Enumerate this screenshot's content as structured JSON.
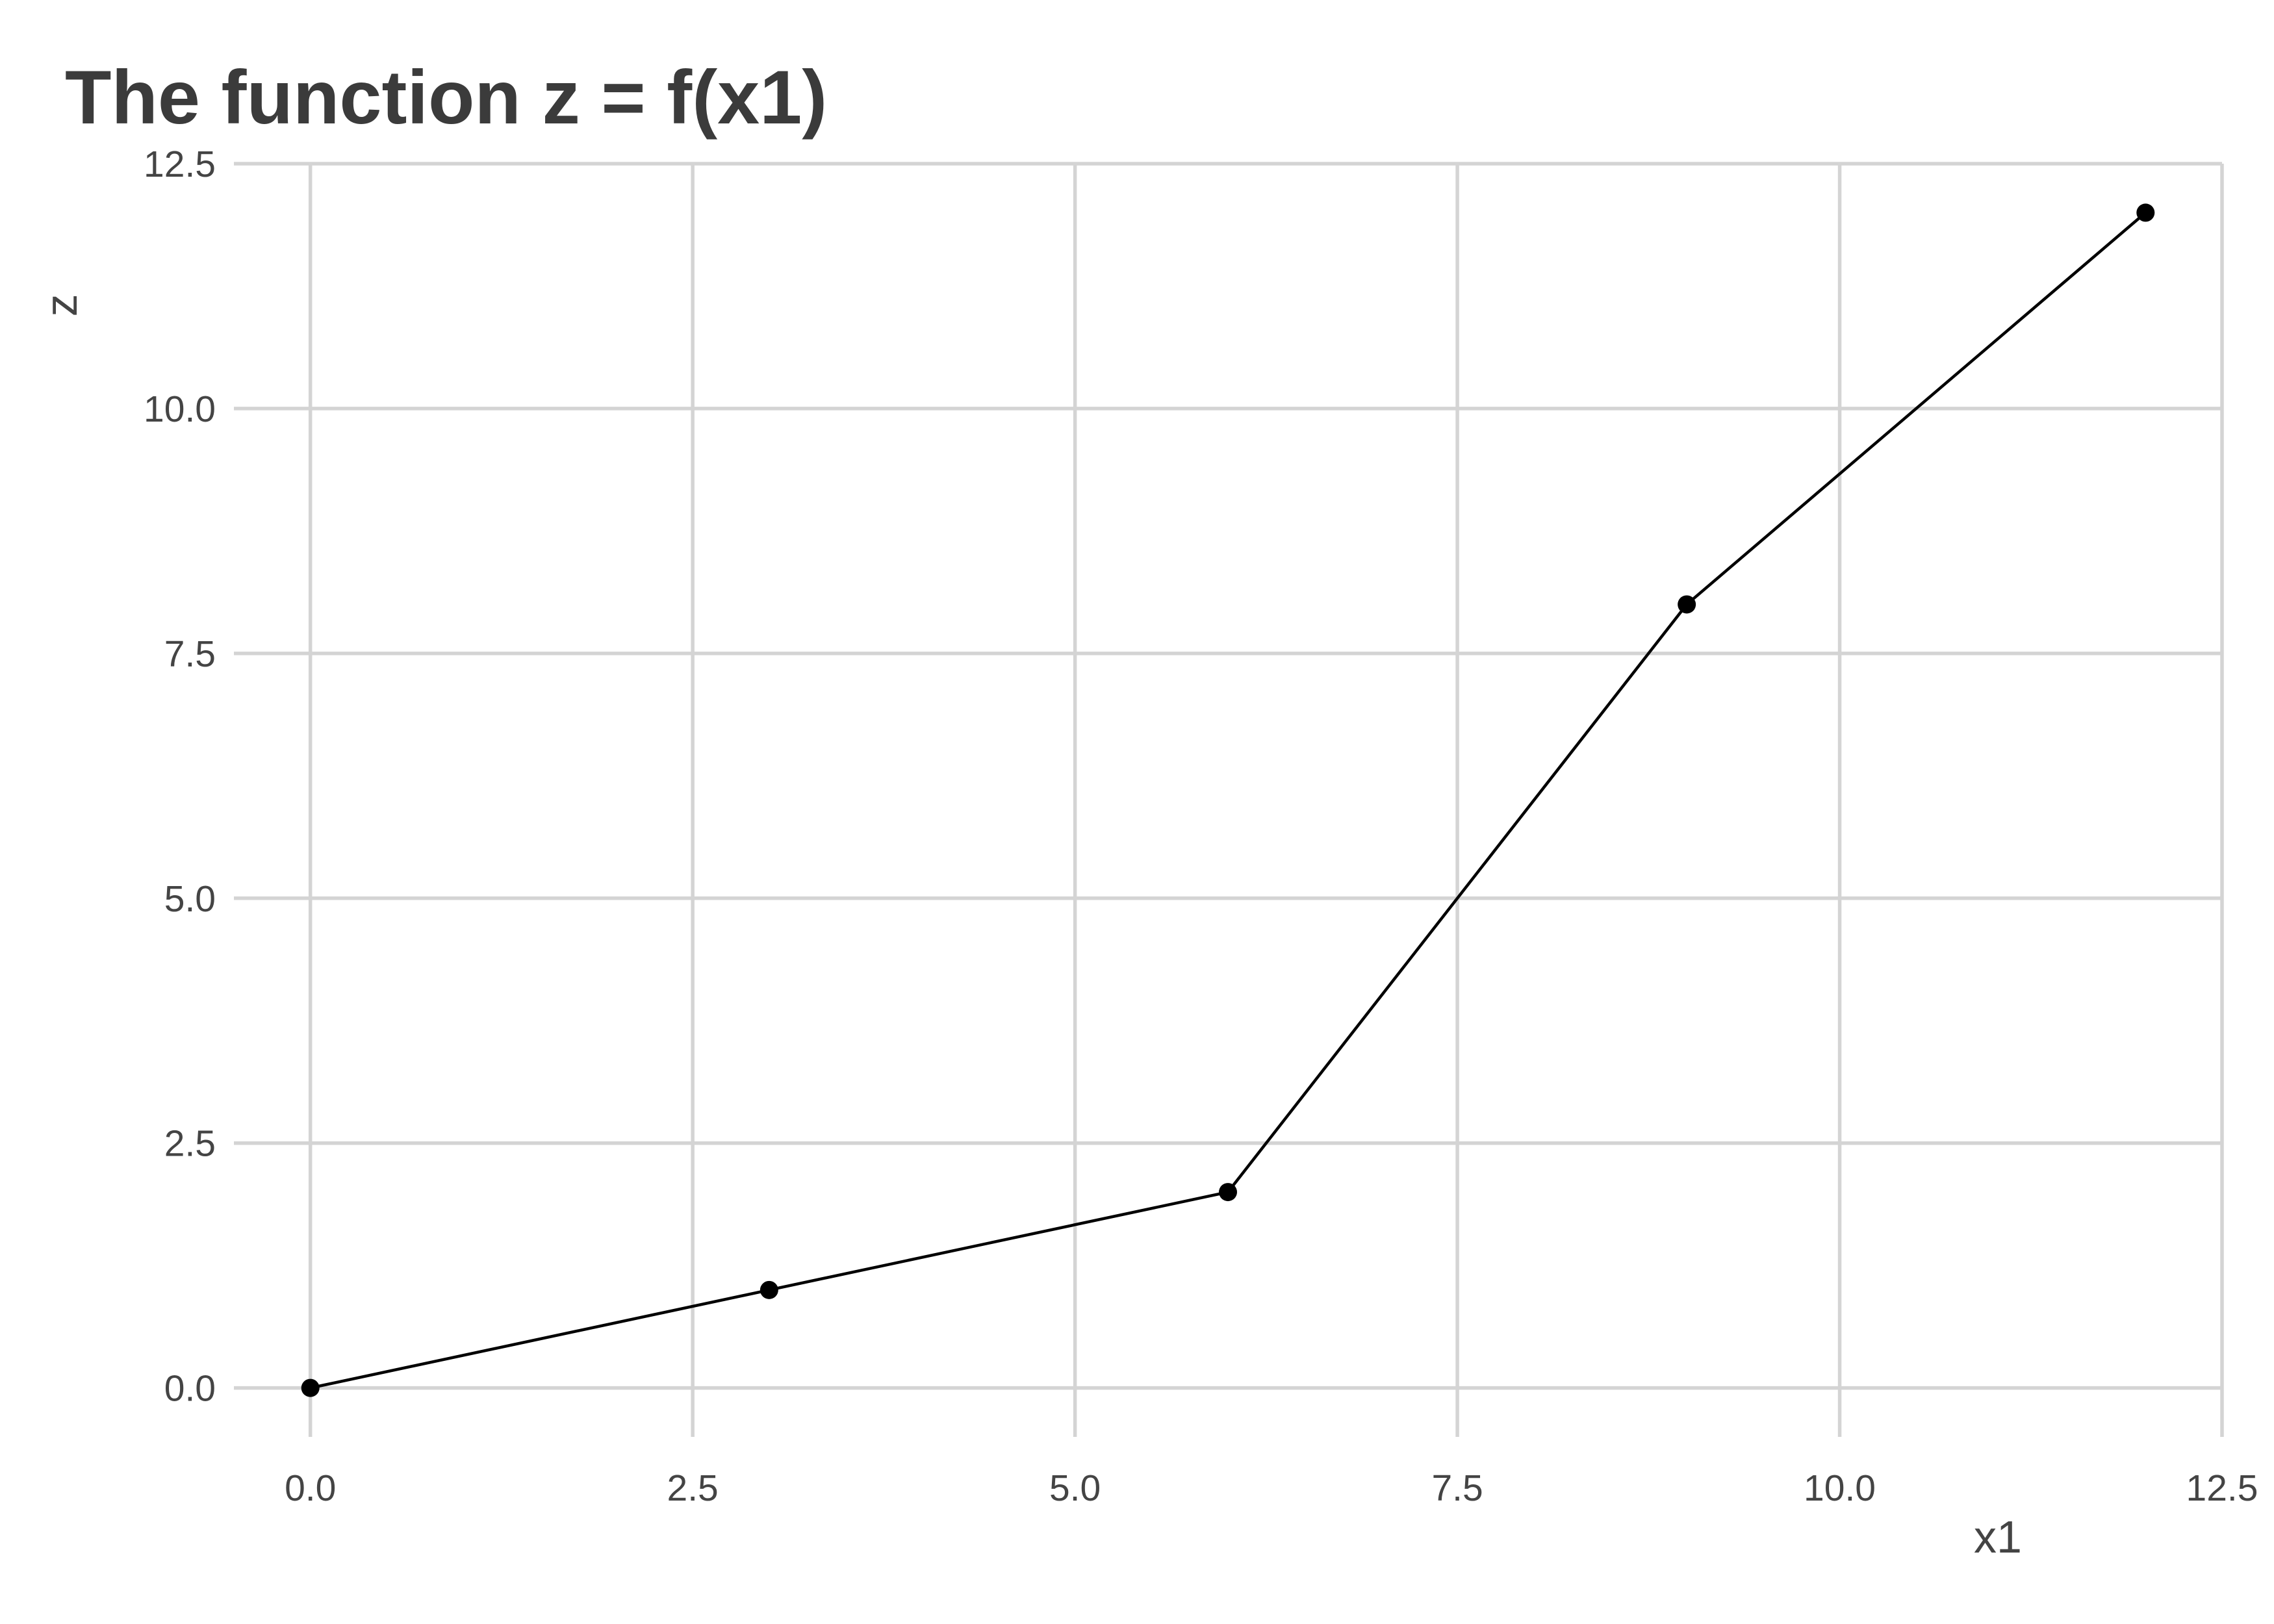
{
  "chart_data": {
    "type": "line",
    "title": "The function z = f(x1)",
    "xlabel": "x1",
    "ylabel": "z",
    "xlim": [
      -0.5,
      12.5
    ],
    "ylim": [
      -0.5,
      12.5
    ],
    "x_ticks": [
      0.0,
      2.5,
      5.0,
      7.5,
      10.0,
      12.5
    ],
    "x_tick_labels": [
      "0.0",
      "2.5",
      "5.0",
      "7.5",
      "10.0",
      "12.5"
    ],
    "y_ticks": [
      0.0,
      2.5,
      5.0,
      7.5,
      10.0,
      12.5
    ],
    "y_tick_labels": [
      "0.0",
      "2.5",
      "5.0",
      "7.5",
      "10.0",
      "12.5"
    ],
    "grid": true,
    "legend": "none",
    "series": [
      {
        "x": [
          0,
          3,
          6,
          9,
          12
        ],
        "values": [
          0,
          1,
          2,
          8,
          12
        ],
        "color": "#000000"
      }
    ]
  }
}
